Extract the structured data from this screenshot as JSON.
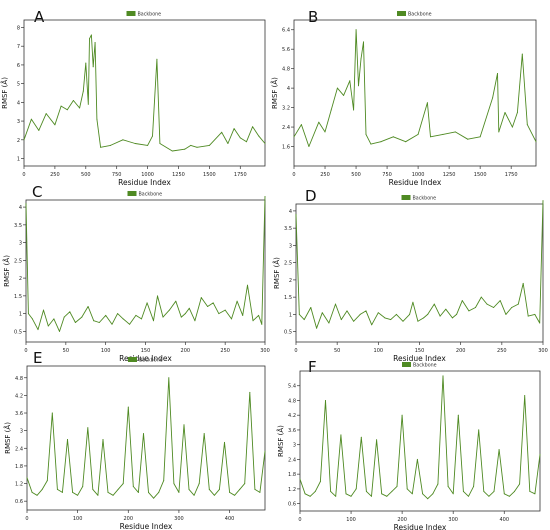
{
  "series_color": "#4f8a23",
  "chart_data": [
    {
      "panel": "A",
      "type": "line",
      "title": "",
      "xlabel": "Residue Index",
      "ylabel": "RMSF (Å)",
      "legend": "Backbone",
      "legend_position": "top-center",
      "xlim": [
        0,
        1950
      ],
      "ylim": [
        0.6,
        8.4
      ],
      "xticks": [
        0,
        250,
        500,
        750,
        1000,
        1250,
        1500,
        1750
      ],
      "yticks": [
        1,
        2,
        3,
        4,
        5,
        6,
        7,
        8
      ],
      "x": [
        0,
        60,
        120,
        180,
        250,
        300,
        350,
        400,
        450,
        480,
        500,
        520,
        530,
        545,
        560,
        575,
        590,
        620,
        700,
        800,
        900,
        1000,
        1040,
        1075,
        1100,
        1200,
        1300,
        1350,
        1400,
        1500,
        1600,
        1650,
        1700,
        1750,
        1800,
        1850,
        1900,
        1950
      ],
      "y": [
        2.0,
        3.1,
        2.5,
        3.4,
        2.8,
        3.8,
        3.6,
        4.1,
        3.7,
        4.6,
        6.1,
        3.9,
        7.4,
        7.6,
        5.9,
        7.2,
        3.1,
        1.6,
        1.7,
        2.0,
        1.8,
        1.7,
        2.2,
        6.3,
        1.8,
        1.4,
        1.5,
        1.7,
        1.6,
        1.7,
        2.4,
        1.8,
        2.6,
        2.1,
        1.9,
        2.7,
        2.2,
        1.8
      ]
    },
    {
      "panel": "B",
      "type": "line",
      "title": "",
      "xlabel": "Residue Index",
      "ylabel": "RMSF (Å)",
      "legend": "Backbone",
      "legend_position": "top-center",
      "xlim": [
        0,
        1950
      ],
      "ylim": [
        0.8,
        6.8
      ],
      "xticks": [
        0,
        250,
        500,
        750,
        1000,
        1250,
        1500,
        1750
      ],
      "yticks": [
        1.6,
        2.4,
        3.2,
        4.0,
        4.8,
        5.6,
        6.4
      ],
      "x": [
        0,
        60,
        120,
        200,
        250,
        300,
        350,
        400,
        450,
        480,
        500,
        520,
        540,
        560,
        580,
        620,
        700,
        800,
        900,
        1000,
        1075,
        1100,
        1200,
        1300,
        1400,
        1500,
        1600,
        1640,
        1650,
        1700,
        1760,
        1800,
        1840,
        1880,
        1950
      ],
      "y": [
        2.0,
        2.5,
        1.6,
        2.6,
        2.2,
        3.1,
        4.0,
        3.7,
        4.3,
        3.1,
        6.4,
        4.1,
        5.2,
        5.9,
        2.1,
        1.7,
        1.8,
        2.0,
        1.8,
        2.1,
        3.4,
        2.0,
        2.1,
        2.2,
        1.9,
        2.0,
        3.6,
        4.6,
        2.2,
        3.0,
        2.4,
        3.0,
        5.4,
        2.5,
        1.8
      ]
    },
    {
      "panel": "C",
      "type": "line",
      "title": "",
      "xlabel": "Residue Index",
      "ylabel": "RMSF (Å)",
      "legend": "Backbone",
      "legend_position": "top-center",
      "xlim": [
        0,
        300
      ],
      "ylim": [
        0.2,
        4.2
      ],
      "xticks": [
        0,
        50,
        100,
        150,
        200,
        250,
        300
      ],
      "yticks": [
        0.5,
        1.0,
        1.5,
        2.0,
        2.5,
        3.0,
        3.5,
        4.0
      ],
      "x": [
        0,
        3,
        8,
        15,
        22,
        28,
        35,
        42,
        48,
        55,
        62,
        70,
        78,
        85,
        92,
        100,
        108,
        115,
        122,
        130,
        138,
        145,
        152,
        160,
        165,
        172,
        180,
        188,
        195,
        200,
        205,
        212,
        220,
        228,
        235,
        242,
        250,
        258,
        265,
        272,
        278,
        285,
        292,
        296,
        300
      ],
      "y": [
        4.1,
        1.0,
        0.85,
        0.55,
        1.1,
        0.65,
        0.85,
        0.5,
        0.9,
        1.05,
        0.75,
        0.9,
        1.2,
        0.8,
        0.75,
        0.95,
        0.7,
        1.0,
        0.85,
        0.7,
        0.95,
        0.85,
        1.3,
        0.8,
        1.5,
        0.9,
        1.1,
        1.35,
        0.9,
        1.0,
        1.15,
        0.8,
        1.45,
        1.2,
        1.3,
        1.0,
        1.1,
        0.85,
        1.35,
        0.95,
        1.8,
        0.8,
        0.95,
        0.7,
        4.3
      ]
    },
    {
      "panel": "D",
      "type": "line",
      "title": "",
      "xlabel": "Residue Index",
      "ylabel": "RMSF (Å)",
      "legend": "Backbone",
      "legend_position": "top-center",
      "xlim": [
        0,
        300
      ],
      "ylim": [
        0.2,
        4.2
      ],
      "xticks": [
        0,
        50,
        100,
        150,
        200,
        250,
        300
      ],
      "yticks": [
        0.5,
        1.0,
        1.5,
        2.0,
        2.5,
        3.0,
        3.5,
        4.0
      ],
      "x": [
        0,
        4,
        10,
        18,
        25,
        32,
        40,
        48,
        55,
        62,
        70,
        78,
        85,
        92,
        100,
        108,
        115,
        122,
        130,
        138,
        142,
        148,
        155,
        160,
        168,
        175,
        182,
        190,
        195,
        202,
        210,
        218,
        225,
        232,
        240,
        248,
        255,
        262,
        270,
        276,
        282,
        290,
        296,
        300
      ],
      "y": [
        3.9,
        1.0,
        0.85,
        1.2,
        0.6,
        1.05,
        0.75,
        1.3,
        0.85,
        1.1,
        0.8,
        1.0,
        1.1,
        0.7,
        1.05,
        0.9,
        0.85,
        1.0,
        0.8,
        1.0,
        1.35,
        0.8,
        0.9,
        1.0,
        1.3,
        0.95,
        1.15,
        0.9,
        1.0,
        1.4,
        1.1,
        1.2,
        1.5,
        1.3,
        1.2,
        1.4,
        1.0,
        1.2,
        1.3,
        1.9,
        0.95,
        1.0,
        0.75,
        4.3
      ]
    },
    {
      "panel": "E",
      "type": "line",
      "title": "",
      "xlabel": "Residue Index",
      "ylabel": "RMSF (Å)",
      "legend": "Backbone",
      "legend_position": "top-center",
      "xlim": [
        0,
        470
      ],
      "ylim": [
        0.3,
        5.2
      ],
      "xticks": [
        0,
        100,
        200,
        300,
        400
      ],
      "yticks": [
        0.6,
        1.2,
        1.8,
        2.4,
        3.0,
        3.6,
        4.2,
        4.8
      ],
      "x": [
        0,
        10,
        20,
        30,
        40,
        50,
        60,
        70,
        80,
        90,
        100,
        110,
        120,
        130,
        140,
        150,
        160,
        170,
        180,
        190,
        200,
        210,
        220,
        230,
        240,
        250,
        260,
        270,
        280,
        290,
        300,
        310,
        320,
        330,
        340,
        350,
        360,
        370,
        380,
        390,
        400,
        410,
        420,
        430,
        440,
        450,
        460,
        470
      ],
      "y": [
        1.4,
        0.9,
        0.8,
        1.0,
        1.3,
        3.6,
        1.0,
        0.9,
        2.7,
        0.9,
        0.8,
        1.1,
        3.1,
        1.0,
        0.8,
        2.7,
        0.9,
        0.8,
        1.0,
        1.2,
        3.8,
        1.1,
        0.9,
        2.9,
        0.9,
        0.7,
        0.9,
        1.3,
        4.8,
        1.2,
        0.9,
        3.2,
        1.0,
        0.8,
        1.2,
        2.9,
        1.0,
        0.8,
        1.0,
        2.6,
        0.9,
        0.8,
        1.0,
        1.2,
        4.3,
        1.0,
        0.9,
        2.3
      ]
    },
    {
      "panel": "F",
      "type": "line",
      "title": "",
      "xlabel": "Residue Index",
      "ylabel": "RMSF (Å)",
      "legend": "Backbone",
      "legend_position": "top-center",
      "xlim": [
        0,
        470
      ],
      "ylim": [
        0.3,
        6.0
      ],
      "xticks": [
        0,
        100,
        200,
        300,
        400
      ],
      "yticks": [
        0.6,
        1.2,
        1.8,
        2.4,
        3.0,
        3.6,
        4.2,
        4.8,
        5.4
      ],
      "x": [
        0,
        10,
        20,
        30,
        40,
        50,
        60,
        70,
        80,
        90,
        100,
        110,
        120,
        130,
        140,
        150,
        160,
        170,
        180,
        190,
        200,
        210,
        220,
        230,
        240,
        250,
        260,
        270,
        280,
        290,
        300,
        310,
        320,
        330,
        340,
        350,
        360,
        370,
        380,
        390,
        400,
        410,
        420,
        430,
        440,
        450,
        460,
        470
      ],
      "y": [
        1.6,
        1.0,
        0.9,
        1.1,
        1.5,
        4.8,
        1.1,
        0.9,
        3.4,
        1.0,
        0.9,
        1.2,
        3.3,
        1.1,
        0.9,
        3.2,
        1.0,
        0.9,
        1.1,
        1.3,
        4.2,
        1.2,
        1.0,
        2.4,
        1.0,
        0.8,
        1.0,
        1.4,
        5.8,
        1.3,
        1.0,
        4.2,
        1.1,
        0.9,
        1.3,
        3.6,
        1.1,
        0.9,
        1.1,
        2.8,
        1.0,
        0.9,
        1.1,
        1.4,
        5.0,
        1.1,
        1.0,
        2.6
      ]
    }
  ]
}
